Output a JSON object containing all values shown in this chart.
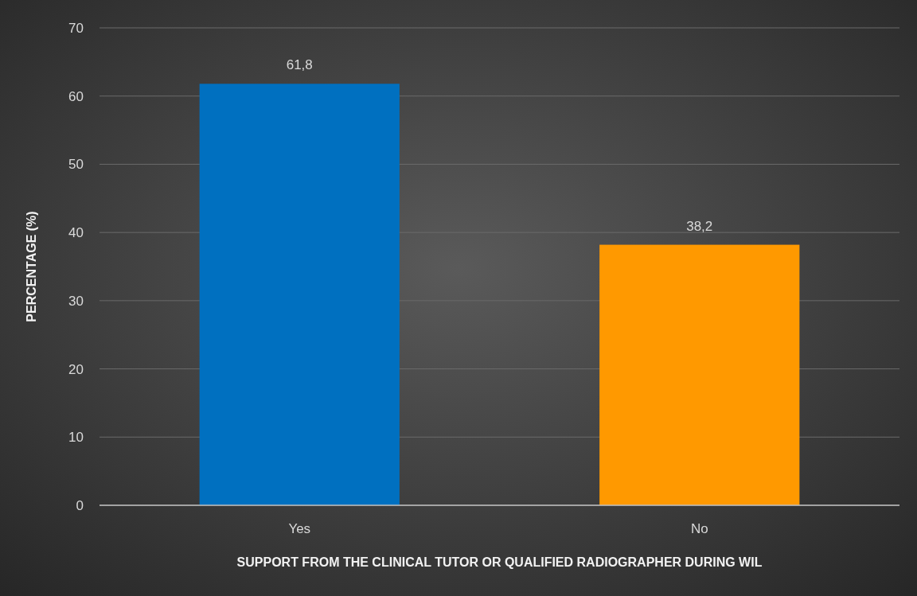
{
  "chart_data": {
    "type": "bar",
    "xlabel": "SUPPORT FROM THE CLINICAL TUTOR OR QUALIFIED RADIOGRAPHER DURING WIL",
    "ylabel": "PERCENTAGE (%)",
    "categories": [
      "Yes",
      "No"
    ],
    "values": [
      61.8,
      38.2
    ],
    "colors": [
      "#0070c0",
      "#ff9900"
    ],
    "value_labels": [
      "61,8",
      "38,2"
    ],
    "ylim": [
      0,
      70
    ],
    "yticks": [
      0,
      10,
      20,
      30,
      40,
      50,
      60,
      70
    ],
    "grid": "y"
  }
}
